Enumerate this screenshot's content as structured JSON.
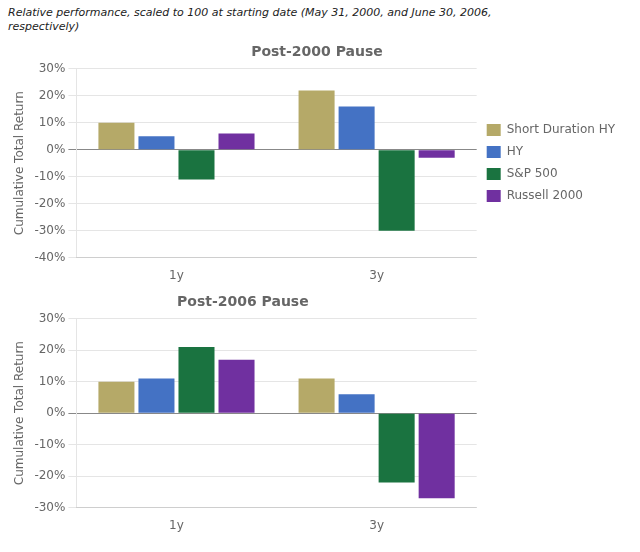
{
  "chart_data": [
    {
      "type": "bar",
      "title": "Post-2000 Pause",
      "subtitle": "Relative performance, scaled to 100 at starting date (May 31, 2000, and June 30, 2006,\nrespectively)",
      "ylabel": "Cumulative Total Return",
      "categories": [
        "1y",
        "3y"
      ],
      "series": [
        {
          "name": "Short Duration HY",
          "color": "#b5a968",
          "values": [
            10,
            22
          ]
        },
        {
          "name": "HY",
          "color": "#4472c4",
          "values": [
            5,
            16
          ]
        },
        {
          "name": "S&P 500",
          "color": "#1a7340",
          "values": [
            -11,
            -30
          ]
        },
        {
          "name": "Russell 2000",
          "color": "#7030a0",
          "values": [
            6,
            -3
          ]
        }
      ],
      "ylim": [
        -40,
        30
      ],
      "yticks": [
        {
          "value": -40,
          "label": "-40%"
        },
        {
          "value": -30,
          "label": "-30%"
        },
        {
          "value": -20,
          "label": "-20%"
        },
        {
          "value": -10,
          "label": "-10%"
        },
        {
          "value": 0,
          "label": "0%"
        },
        {
          "value": 10,
          "label": "10%"
        },
        {
          "value": 20,
          "label": "20%"
        },
        {
          "value": 30,
          "label": "30%"
        }
      ],
      "grid": true,
      "legend": "right"
    },
    {
      "type": "bar",
      "title": "Post-2006 Pause",
      "ylabel": "Cumulative Total Return",
      "categories": [
        "1y",
        "3y"
      ],
      "series": [
        {
          "name": "Short Duration HY",
          "color": "#b5a968",
          "values": [
            10,
            11
          ]
        },
        {
          "name": "HY",
          "color": "#4472c4",
          "values": [
            11,
            6
          ]
        },
        {
          "name": "S&P 500",
          "color": "#1a7340",
          "values": [
            21,
            -22
          ]
        },
        {
          "name": "Russell 2000",
          "color": "#7030a0",
          "values": [
            17,
            -27
          ]
        }
      ],
      "ylim": [
        -30,
        30
      ],
      "yticks": [
        {
          "value": -30,
          "label": "-30%"
        },
        {
          "value": -20,
          "label": "-20%"
        },
        {
          "value": -10,
          "label": "-10%"
        },
        {
          "value": 0,
          "label": "0%"
        },
        {
          "value": 10,
          "label": "10%"
        },
        {
          "value": 20,
          "label": "20%"
        },
        {
          "value": 30,
          "label": "30%"
        }
      ],
      "grid": true
    }
  ]
}
